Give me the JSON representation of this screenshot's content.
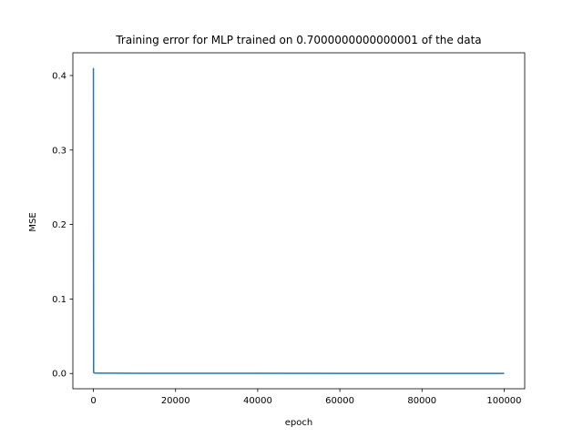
{
  "chart_data": {
    "type": "line",
    "title": "Training error for MLP trained on 0.7000000000000001 of the data",
    "xlabel": "epoch",
    "ylabel": "MSE",
    "xlim": [
      -5000,
      105000
    ],
    "ylim": [
      -0.0205,
      0.4305
    ],
    "xticks": [
      0,
      20000,
      40000,
      60000,
      80000,
      100000
    ],
    "xtick_labels": [
      "0",
      "20000",
      "40000",
      "60000",
      "80000",
      "100000"
    ],
    "yticks": [
      0.0,
      0.1,
      0.2,
      0.3,
      0.4
    ],
    "ytick_labels": [
      "0.0",
      "0.1",
      "0.2",
      "0.3",
      "0.4"
    ],
    "grid": false,
    "series": [
      {
        "name": "training error",
        "color": "#1f77b4",
        "x": [
          0,
          50,
          100,
          500,
          1000,
          5000,
          10000,
          20000,
          40000,
          60000,
          80000,
          100000
        ],
        "y": [
          0.41,
          0.002,
          0.0009,
          0.0006,
          0.0005,
          0.0004,
          0.0003,
          0.0002,
          0.0002,
          0.0001,
          0.0001,
          0.0001
        ]
      }
    ]
  }
}
